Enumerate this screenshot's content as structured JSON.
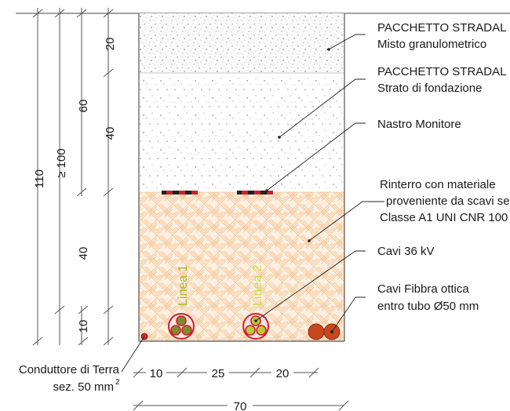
{
  "dimensions": {
    "vertical": [
      "110",
      "≥ 100",
      "60",
      "20",
      "40",
      "40",
      "10"
    ],
    "horizontal": [
      "10",
      "25",
      "20",
      "70"
    ]
  },
  "labels": {
    "pavement_1_title": "PACCHETTO STRADAL",
    "pavement_1_sub": "Misto granulometrico",
    "pavement_2_title": "PACCHETTO STRADAL",
    "pavement_2_sub": "Strato di fondazione",
    "tape": "Nastro Monitore",
    "backfill_l1": "Rinterro con materiale",
    "backfill_l2": "proveniente da scavi se",
    "backfill_l3": "Classe A1 UNI CNR 100",
    "cables": "Cavi 36 kV",
    "fiber_l1": "Cavi Fibbra ottica",
    "fiber_l2": "entro tubo Ø50 mm",
    "ground_l1": "Conduttore di Terra",
    "ground_l2": "sez. 50 mm",
    "ground_sup": "2",
    "line1": "Linea 1",
    "line2": "Linea 2"
  },
  "colors": {
    "backfill_fill": "#fdf0e1",
    "hatch": "#f3c79a",
    "cable_red": "#d0212b",
    "cable_green": "#7a8f2e",
    "line1_text": "#a7b82a",
    "line2_text": "#c9e04a",
    "fiber_tube": "#c8481e",
    "ground_dot": "#e8202a"
  }
}
